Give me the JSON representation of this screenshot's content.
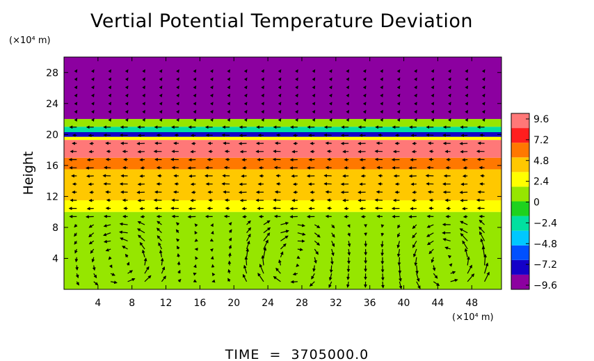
{
  "chart_data": {
    "type": "heatmap",
    "title": "Vertial Potential Temperature Deviation",
    "ylabel": "Height",
    "xlabel": "",
    "y_unit_label": "(×10⁴ m)",
    "x_unit_label": "(×10⁴ m)",
    "footer": "TIME  =  3705000.0",
    "xlim": [
      0,
      51.5
    ],
    "ylim": [
      0,
      30
    ],
    "x_ticks": [
      4,
      8,
      12,
      16,
      20,
      24,
      28,
      32,
      36,
      40,
      44,
      48
    ],
    "y_ticks": [
      4,
      8,
      12,
      16,
      20,
      24,
      28
    ],
    "colorbar": {
      "ticks": [
        9.6,
        7.2,
        4.8,
        2.4,
        0,
        -2.4,
        -4.8,
        -7.2,
        -9.6
      ],
      "tick_labels": [
        "9.6",
        "7.2",
        "4.8",
        "2.4",
        "0",
        "−2.4",
        "−4.8",
        "−7.2",
        "−9.6"
      ],
      "range": [
        -9.6,
        9.6
      ],
      "colors": [
        "#8c00a0",
        "#1400c8",
        "#0050ff",
        "#00c8ff",
        "#00e0a0",
        "#1ed21e",
        "#96e600",
        "#ffff00",
        "#ffc800",
        "#ff7800",
        "#ff1e1e",
        "#ff7878"
      ]
    },
    "field_layers": [
      {
        "y_from": 0,
        "y_to": 10,
        "value": 0.5
      },
      {
        "y_from": 10,
        "y_to": 11.5,
        "value": 1.6
      },
      {
        "y_from": 11.5,
        "y_to": 15.5,
        "value": 3.6
      },
      {
        "y_from": 15.5,
        "y_to": 17,
        "value": 5.8
      },
      {
        "y_from": 17,
        "y_to": 19.3,
        "value": 8.6
      },
      {
        "y_from": 19.3,
        "y_to": 19.7,
        "value": 2.0
      },
      {
        "y_from": 19.7,
        "y_to": 20.3,
        "value": -7.6
      },
      {
        "y_from": 20.3,
        "y_to": 21.0,
        "value": -2.5
      },
      {
        "y_from": 21.0,
        "y_to": 22.0,
        "value": 1.0
      },
      {
        "y_from": 22.0,
        "y_to": 30,
        "value": -9.6
      }
    ],
    "vortex_centers_x": [
      7.5,
      26,
      46
    ],
    "vector_field": "wind vectors overlaid (circulation cells near the surface, horizontal flow 12-20, near-zero above 22)"
  }
}
